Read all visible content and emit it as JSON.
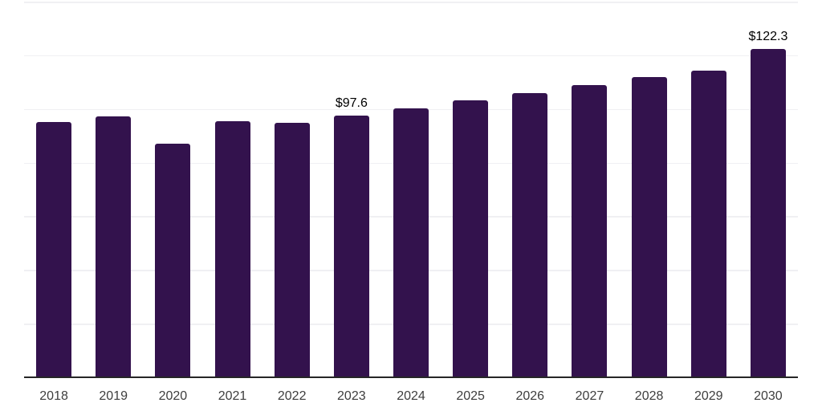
{
  "chart_data": {
    "type": "bar",
    "title": "",
    "xlabel": "",
    "ylabel": "",
    "categories": [
      "2018",
      "2019",
      "2020",
      "2021",
      "2022",
      "2023",
      "2024",
      "2025",
      "2026",
      "2027",
      "2028",
      "2029",
      "2030"
    ],
    "values": [
      95.1,
      97.1,
      87.2,
      95.5,
      94.9,
      97.6,
      100.3,
      103.3,
      105.9,
      108.9,
      111.9,
      114.2,
      122.3
    ],
    "annotations": [
      {
        "category": "2023",
        "text": "$97.6"
      },
      {
        "category": "2030",
        "text": "$122.3"
      }
    ],
    "ylim": [
      0,
      140
    ],
    "gridline_step": 20,
    "grid": "horizontal",
    "y_axis_labels_shown": false,
    "legend_position": "none",
    "value_prefix": "$"
  },
  "colors": {
    "bar": "#33124d",
    "gridline": "#f0f0f3",
    "axis": "#262626",
    "tick_label": "#3d3d3d",
    "data_label": "#000000",
    "background": "#ffffff"
  }
}
